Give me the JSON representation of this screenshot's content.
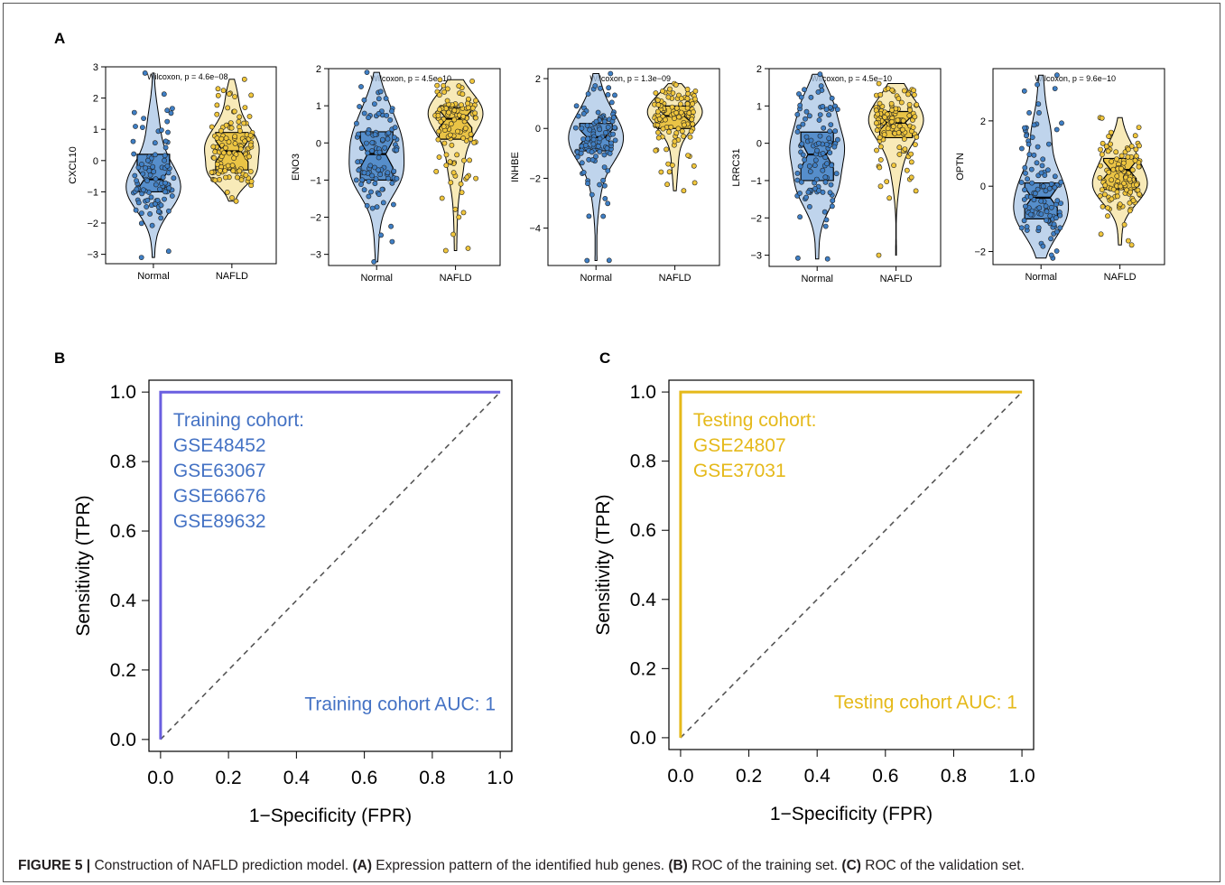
{
  "panel_labels": {
    "a": "A",
    "b": "B",
    "c": "C"
  },
  "caption": {
    "figure_label": "FIGURE 5 |",
    "intro": " Construction of NAFLD prediction model. ",
    "a_tag": "(A)",
    "a_text": " Expression pattern of the identified hub genes. ",
    "b_tag": "(B)",
    "b_text": " ROC of the training set. ",
    "c_tag": "(C)",
    "c_text": " ROC of the validation set."
  },
  "colors": {
    "normal_box": "#4a86c8",
    "normal_violin": "#a9c6e6",
    "normal_point": "#3f7fc5",
    "nafld_box": "#e8c03a",
    "nafld_violin": "#f6e3a0",
    "nafld_point": "#f0c63c",
    "roc_training_line": "#6a5fe0",
    "roc_training_text": "#4472c4",
    "roc_testing": "#e5b91a",
    "diagonal": "#555555"
  },
  "chart_data": [
    {
      "id": "cxcl10",
      "type": "violin-box",
      "ylabel": "CXCL10",
      "categories": [
        "Normal",
        "NAFLD"
      ],
      "annotation": "Wilcoxon, p = 4.6e−08",
      "ylim": [
        -3.3,
        3.0
      ],
      "yticks": [
        "3",
        "2",
        "1",
        "0",
        "−1",
        "−2",
        "−3"
      ],
      "ytick_values": [
        3,
        2,
        1,
        0,
        -1,
        -2,
        -3
      ],
      "groups": [
        {
          "name": "Normal",
          "min": -3.1,
          "q1": -1.0,
          "median": -0.6,
          "q3": 0.2,
          "max": 2.8,
          "n": 105
        },
        {
          "name": "NAFLD",
          "min": -1.3,
          "q1": -0.3,
          "median": 0.3,
          "q3": 0.9,
          "max": 2.6,
          "n": 120
        }
      ]
    },
    {
      "id": "eno3",
      "type": "violin-box",
      "ylabel": "ENO3",
      "categories": [
        "Normal",
        "NAFLD"
      ],
      "annotation": "Wilcoxon, p = 4.5e−10",
      "ylim": [
        -3.3,
        2.0
      ],
      "yticks": [
        "2",
        "1",
        "0",
        "−1",
        "−2",
        "−3"
      ],
      "ytick_values": [
        2,
        1,
        0,
        -1,
        -2,
        -3
      ],
      "groups": [
        {
          "name": "Normal",
          "min": -3.2,
          "q1": -1.0,
          "median": -0.3,
          "q3": 0.3,
          "max": 1.9,
          "n": 105
        },
        {
          "name": "NAFLD",
          "min": -2.9,
          "q1": 0.1,
          "median": 0.65,
          "q3": 0.95,
          "max": 1.7,
          "n": 120
        }
      ]
    },
    {
      "id": "inhbe",
      "type": "violin-box",
      "ylabel": "INHBE",
      "categories": [
        "Normal",
        "NAFLD"
      ],
      "annotation": "Wilcoxon, p = 1.3e−09",
      "ylim": [
        -5.5,
        2.4
      ],
      "yticks": [
        "2",
        "0",
        "−2",
        "−4"
      ],
      "ytick_values": [
        2,
        0,
        -2,
        -4
      ],
      "groups": [
        {
          "name": "Normal",
          "min": -5.3,
          "q1": -0.9,
          "median": -0.35,
          "q3": 0.2,
          "max": 2.2,
          "n": 105
        },
        {
          "name": "NAFLD",
          "min": -2.5,
          "q1": 0.0,
          "median": 0.5,
          "q3": 0.9,
          "max": 1.8,
          "n": 120
        }
      ]
    },
    {
      "id": "lrrc31",
      "type": "violin-box",
      "ylabel": "LRRC31",
      "categories": [
        "Normal",
        "NAFLD"
      ],
      "annotation": "Wilcoxon, p = 4.5e−10",
      "ylim": [
        -3.3,
        2.0
      ],
      "yticks": [
        "2",
        "1",
        "0",
        "−1",
        "−2",
        "−3"
      ],
      "ytick_values": [
        2,
        1,
        0,
        -1,
        -2,
        -3
      ],
      "groups": [
        {
          "name": "Normal",
          "min": -3.1,
          "q1": -1.0,
          "median": -0.3,
          "q3": 0.3,
          "max": 1.85,
          "n": 105
        },
        {
          "name": "NAFLD",
          "min": -3.0,
          "q1": 0.15,
          "median": 0.55,
          "q3": 0.85,
          "max": 1.6,
          "n": 120
        }
      ]
    },
    {
      "id": "optn",
      "type": "violin-box",
      "ylabel": "OPTN",
      "categories": [
        "Normal",
        "NAFLD"
      ],
      "annotation": "Wilcoxon, p = 9.6e−10",
      "ylim": [
        -2.4,
        3.6
      ],
      "yticks": [
        "2",
        "0",
        "−2"
      ],
      "ytick_values": [
        2,
        0,
        -2
      ],
      "groups": [
        {
          "name": "Normal",
          "min": -2.2,
          "q1": -1.0,
          "median": -0.35,
          "q3": 0.1,
          "max": 3.4,
          "n": 105
        },
        {
          "name": "NAFLD",
          "min": -1.8,
          "q1": -0.1,
          "median": 0.5,
          "q3": 0.85,
          "max": 2.1,
          "n": 120
        }
      ]
    },
    {
      "id": "roc_training",
      "type": "line",
      "xlabel": "1−Specificity (FPR)",
      "ylabel": "Sensitivity (TPR)",
      "xlim": [
        0,
        1
      ],
      "ylim": [
        0,
        1
      ],
      "xticks": [
        "0.0",
        "0.2",
        "0.4",
        "0.6",
        "0.8",
        "1.0"
      ],
      "yticks": [
        "0.0",
        "0.2",
        "0.4",
        "0.6",
        "0.8",
        "1.0"
      ],
      "tick_values": [
        0,
        0.2,
        0.4,
        0.6,
        0.8,
        1.0
      ],
      "x": [
        0,
        0,
        1
      ],
      "y": [
        0,
        1,
        1
      ],
      "diagonal": true,
      "cohort_title": "Training cohort:",
      "cohort_lines": [
        "GSE48452",
        "GSE63067",
        "GSE66676",
        "GSE89632"
      ],
      "auc_label": "Training cohort AUC: 1"
    },
    {
      "id": "roc_testing",
      "type": "line",
      "xlabel": "1−Specificity (FPR)",
      "ylabel": "Sensitivity (TPR)",
      "xlim": [
        0,
        1
      ],
      "ylim": [
        0,
        1
      ],
      "xticks": [
        "0.0",
        "0.2",
        "0.4",
        "0.6",
        "0.8",
        "1.0"
      ],
      "yticks": [
        "0.0",
        "0.2",
        "0.4",
        "0.6",
        "0.8",
        "1.0"
      ],
      "tick_values": [
        0,
        0.2,
        0.4,
        0.6,
        0.8,
        1.0
      ],
      "x": [
        0,
        0,
        1
      ],
      "y": [
        0,
        1,
        1
      ],
      "diagonal": true,
      "cohort_title": "Testing cohort:",
      "cohort_lines": [
        "GSE24807",
        "GSE37031"
      ],
      "auc_label": "Testing cohort AUC: 1"
    }
  ]
}
